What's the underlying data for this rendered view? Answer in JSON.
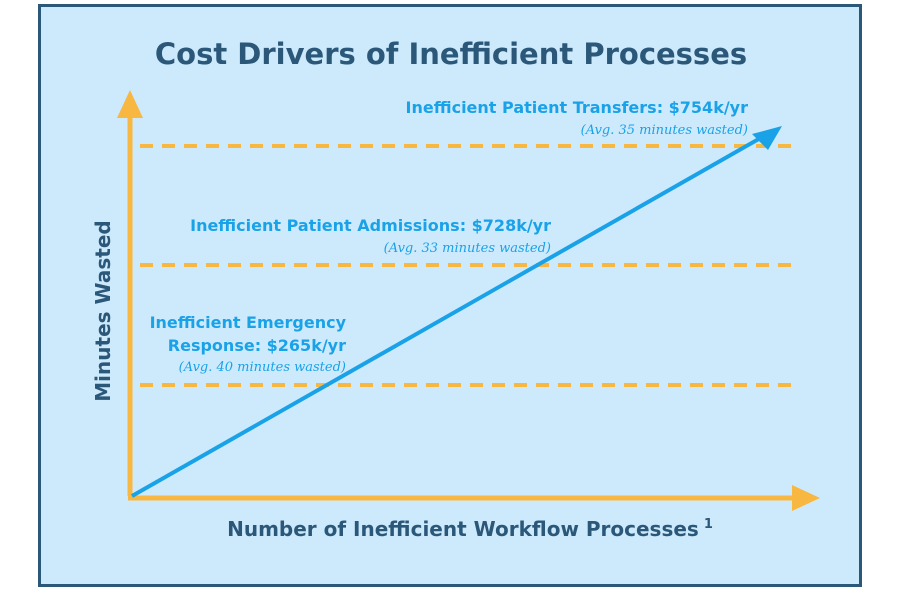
{
  "chart_data": {
    "type": "line",
    "title": "Cost Drivers of Inefficient Processes",
    "xlabel": "Number of Inefficient Workflow Processes",
    "xlabel_superscript": "1",
    "ylabel": "Minutes Wasted",
    "grid": false,
    "colors": {
      "title": "#2b5779",
      "frame_border": "#2b5779",
      "background": "#cdeafc",
      "axes": "#f7b740",
      "dashed_lines": "#f7b740",
      "trend_arrow": "#1aa2e8",
      "annotations": "#1aa2e8"
    },
    "annotations": [
      {
        "lines": [
          "Inefficient Patient Transfers: $754k/yr"
        ],
        "detail": "(Avg. 35 minutes wasted)",
        "cost_k_per_yr": 754,
        "avg_minutes_wasted": 35
      },
      {
        "lines": [
          "Inefficient Patient Admissions: $728k/yr"
        ],
        "detail": "(Avg. 33 minutes wasted)",
        "cost_k_per_yr": 728,
        "avg_minutes_wasted": 33
      },
      {
        "lines": [
          "Inefficient Emergency",
          "Response: $265k/yr"
        ],
        "detail": "(Avg. 40 minutes wasted)",
        "cost_k_per_yr": 265,
        "avg_minutes_wasted": 40
      }
    ]
  }
}
